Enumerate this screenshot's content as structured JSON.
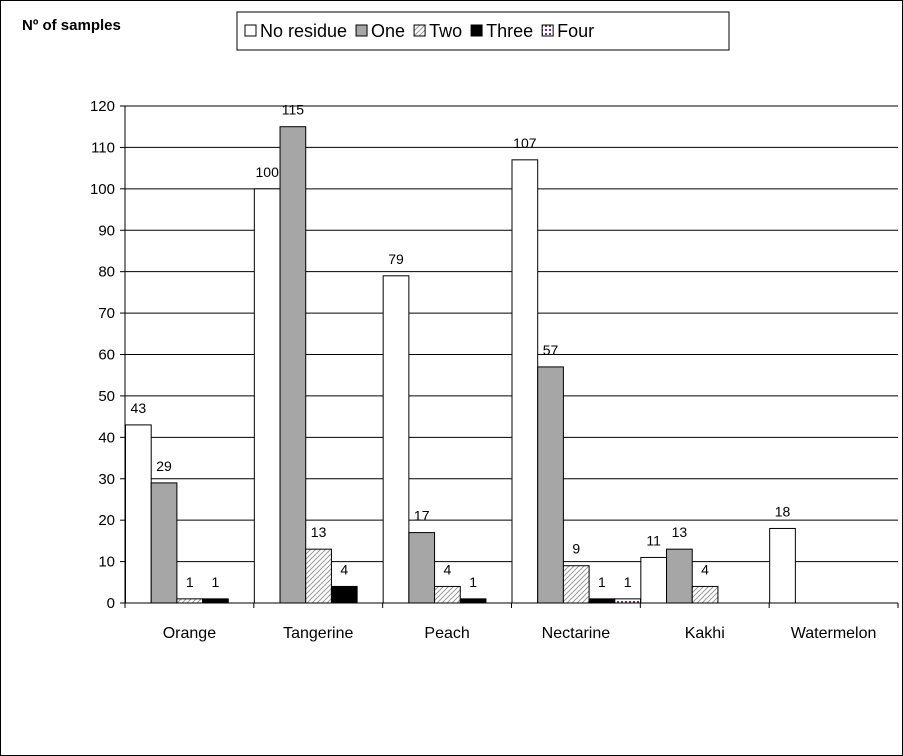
{
  "chart_data": {
    "type": "bar",
    "title": "",
    "ylabel": "Nº of samples",
    "xlabel": "",
    "categories": [
      "Orange",
      "Tangerine",
      "Peach",
      "Nectarine",
      "Kakhi",
      "Watermelon"
    ],
    "series": [
      {
        "name": "No residue",
        "values": [
          43,
          100,
          79,
          107,
          11,
          18
        ],
        "fill": "#ffffff",
        "pattern": "solid"
      },
      {
        "name": "One",
        "values": [
          29,
          115,
          17,
          57,
          13,
          null
        ],
        "fill": "#a6a6a6",
        "pattern": "solid"
      },
      {
        "name": "Two",
        "values": [
          1,
          13,
          4,
          9,
          4,
          null
        ],
        "fill": "#ffffff",
        "pattern": "diagonal-hatch"
      },
      {
        "name": "Three",
        "values": [
          1,
          4,
          1,
          1,
          null,
          null
        ],
        "fill": "#000000",
        "pattern": "solid"
      },
      {
        "name": "Four",
        "values": [
          null,
          null,
          null,
          1,
          null,
          null
        ],
        "fill": "#ffffff",
        "pattern": "dotted-purple"
      }
    ],
    "ylim": [
      0,
      120
    ],
    "yticks": [
      0,
      10,
      20,
      30,
      40,
      50,
      60,
      70,
      80,
      90,
      100,
      110,
      120
    ],
    "grid": true,
    "legend_position": "top"
  }
}
